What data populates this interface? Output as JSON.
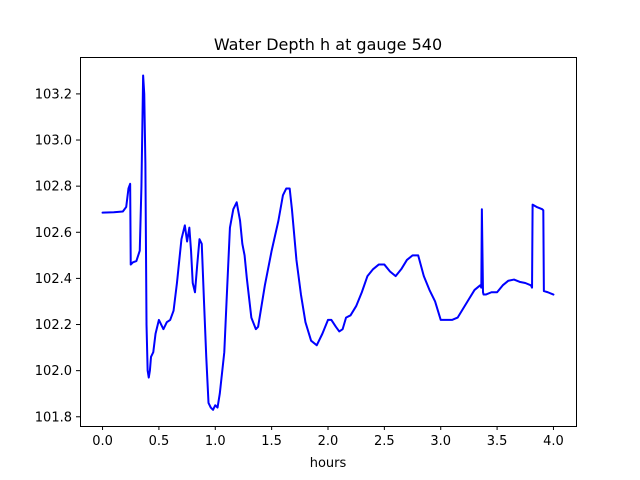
{
  "chart_data": {
    "type": "line",
    "title": "Water Depth h at gauge 540",
    "xlabel": "hours",
    "ylabel": "",
    "xlim": [
      -0.2,
      4.2
    ],
    "ylim": [
      101.76,
      103.36
    ],
    "grid": false,
    "x_ticks": [
      0.0,
      0.5,
      1.0,
      1.5,
      2.0,
      2.5,
      3.0,
      3.5,
      4.0
    ],
    "x_tick_labels": [
      "0.0",
      "0.5",
      "1.0",
      "1.5",
      "2.0",
      "2.5",
      "3.0",
      "3.5",
      "4.0"
    ],
    "y_ticks": [
      101.8,
      102.0,
      102.2,
      102.4,
      102.6,
      102.8,
      103.0,
      103.2
    ],
    "y_tick_labels": [
      "101.8",
      "102.0",
      "102.2",
      "102.4",
      "102.6",
      "102.8",
      "103.0",
      "103.2"
    ],
    "series": [
      {
        "color": "#0000ff",
        "x": [
          0.0,
          0.1,
          0.18,
          0.21,
          0.23,
          0.245,
          0.25,
          0.27,
          0.3,
          0.33,
          0.345,
          0.36,
          0.37,
          0.38,
          0.39,
          0.4,
          0.41,
          0.42,
          0.43,
          0.45,
          0.47,
          0.5,
          0.52,
          0.54,
          0.57,
          0.6,
          0.63,
          0.66,
          0.7,
          0.73,
          0.75,
          0.77,
          0.785,
          0.8,
          0.82,
          0.84,
          0.86,
          0.88,
          0.9,
          0.92,
          0.94,
          0.96,
          0.98,
          1.0,
          1.02,
          1.04,
          1.06,
          1.08,
          1.1,
          1.13,
          1.16,
          1.19,
          1.22,
          1.24,
          1.26,
          1.28,
          1.32,
          1.36,
          1.38,
          1.41,
          1.44,
          1.5,
          1.56,
          1.6,
          1.63,
          1.66,
          1.68,
          1.72,
          1.76,
          1.8,
          1.85,
          1.9,
          1.95,
          2.0,
          2.03,
          2.07,
          2.1,
          2.13,
          2.16,
          2.2,
          2.25,
          2.3,
          2.35,
          2.4,
          2.45,
          2.5,
          2.55,
          2.6,
          2.65,
          2.7,
          2.75,
          2.8,
          2.85,
          2.9,
          2.95,
          3.0,
          3.05,
          3.1,
          3.15,
          3.2,
          3.25,
          3.3,
          3.35,
          3.36,
          3.365,
          3.375,
          3.38,
          3.4,
          3.45,
          3.5,
          3.55,
          3.6,
          3.65,
          3.7,
          3.75,
          3.8,
          3.81,
          3.815,
          3.85,
          3.9,
          3.91,
          3.915,
          3.95,
          4.0
        ],
        "values": [
          102.685,
          102.687,
          102.69,
          102.71,
          102.79,
          102.81,
          102.46,
          102.47,
          102.475,
          102.52,
          102.8,
          103.28,
          103.2,
          102.9,
          102.2,
          102.0,
          101.97,
          102.0,
          102.06,
          102.08,
          102.16,
          102.22,
          102.2,
          102.18,
          102.21,
          102.22,
          102.26,
          102.38,
          102.57,
          102.63,
          102.56,
          102.62,
          102.52,
          102.38,
          102.34,
          102.46,
          102.57,
          102.55,
          102.3,
          102.06,
          101.86,
          101.84,
          101.83,
          101.85,
          101.84,
          101.9,
          101.99,
          102.08,
          102.3,
          102.62,
          102.7,
          102.73,
          102.65,
          102.55,
          102.5,
          102.4,
          102.23,
          102.18,
          102.19,
          102.28,
          102.37,
          102.52,
          102.65,
          102.76,
          102.79,
          102.79,
          102.7,
          102.48,
          102.33,
          102.21,
          102.13,
          102.11,
          102.16,
          102.22,
          102.22,
          102.19,
          102.17,
          102.18,
          102.23,
          102.24,
          102.28,
          102.34,
          102.41,
          102.44,
          102.46,
          102.46,
          102.43,
          102.41,
          102.44,
          102.48,
          102.5,
          102.5,
          102.41,
          102.35,
          102.3,
          102.22,
          102.22,
          102.22,
          102.23,
          102.27,
          102.31,
          102.35,
          102.37,
          102.36,
          102.7,
          102.34,
          102.33,
          102.33,
          102.34,
          102.34,
          102.37,
          102.39,
          102.395,
          102.385,
          102.38,
          102.37,
          102.36,
          102.72,
          102.71,
          102.7,
          102.695,
          102.345,
          102.34,
          102.33
        ]
      }
    ]
  }
}
